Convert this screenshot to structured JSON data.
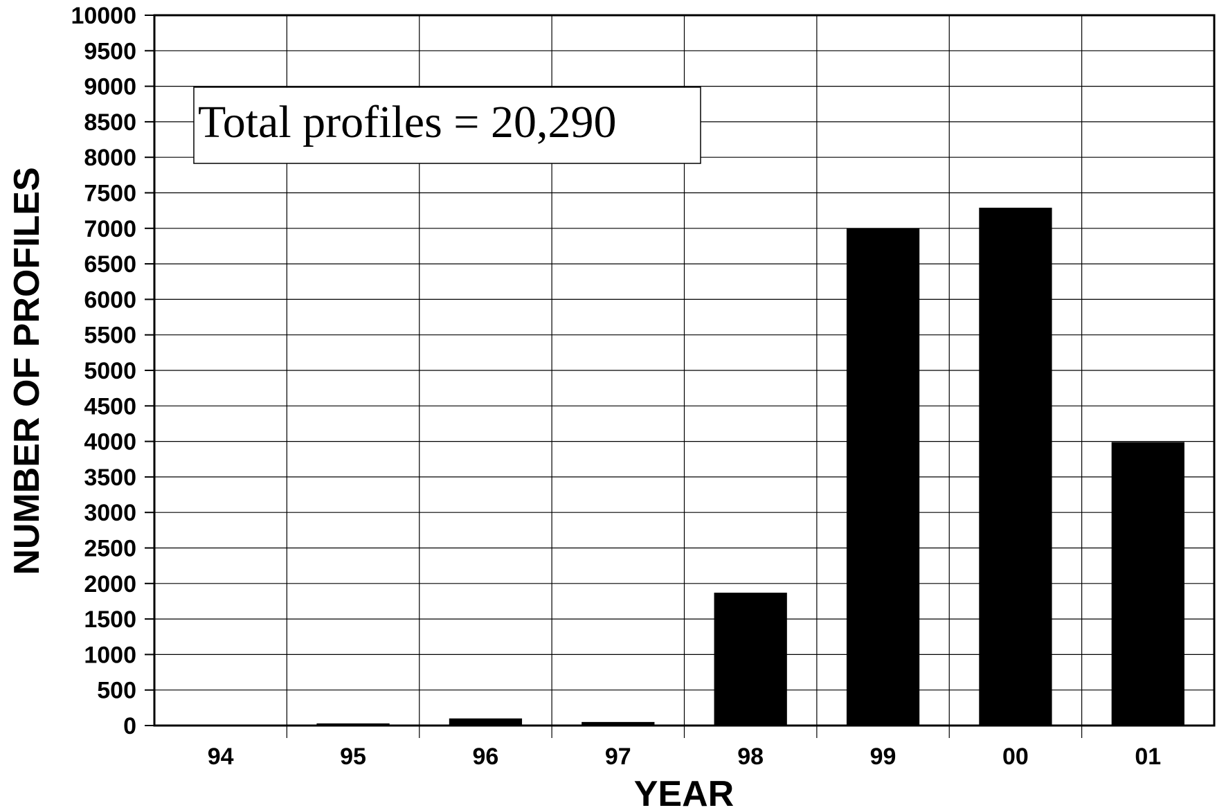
{
  "chart_data": {
    "type": "bar",
    "categories": [
      "94",
      "95",
      "96",
      "97",
      "98",
      "99",
      "00",
      "01"
    ],
    "values": [
      10,
      30,
      100,
      50,
      1870,
      7000,
      7290,
      3990
    ],
    "xlabel": "YEAR",
    "ylabel": "NUMBER OF PROFILES",
    "ylim": [
      0,
      10000
    ],
    "yticks": [
      0,
      500,
      1000,
      1500,
      2000,
      2500,
      3000,
      3500,
      4000,
      4500,
      5000,
      5500,
      6000,
      6500,
      7000,
      7500,
      8000,
      8500,
      9000,
      9500,
      10000
    ],
    "annotation": "Total profiles = 20,290",
    "grid": true,
    "bar_color": "#000000"
  }
}
